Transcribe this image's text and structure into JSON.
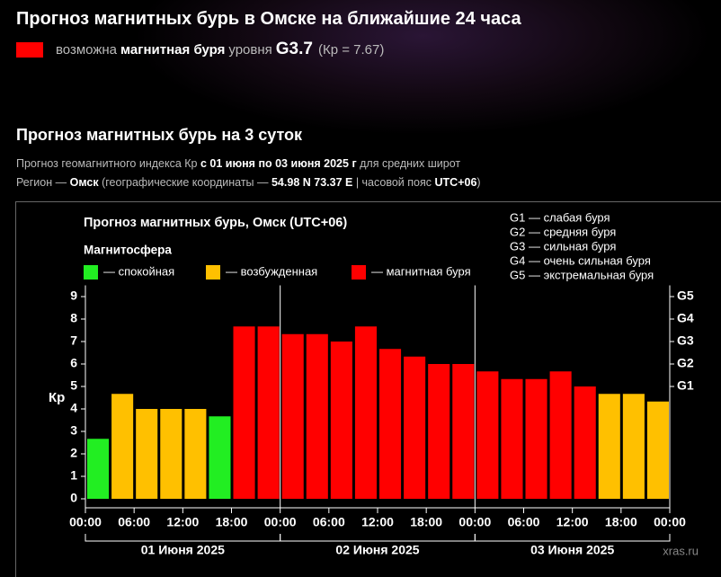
{
  "header": {
    "title": "Прогноз магнитных бурь в Омске на ближайшие 24 часа",
    "color": "#ff0000",
    "prefix": "возможна",
    "storm": "магнитная буря",
    "level_word": "уровня",
    "level": "G3.7",
    "kp": "(Кр = 7.67)"
  },
  "forecast": {
    "title": "Прогноз магнитных бурь на 3 суток",
    "line1": [
      "Прогноз геомагнитного индекса Кр",
      "с 01 июня по 03 июня 2025 г",
      "для средних широт"
    ],
    "line2": [
      "Регион —",
      "Омск",
      "(географические координаты —",
      "54.98 N 73.37 E",
      "| часовой пояс",
      "UTC+06",
      ")"
    ]
  },
  "chart_data": {
    "type": "bar",
    "title": "Прогноз магнитных бурь, Омск (UTC+06)",
    "legend_title": "Магнитосфера",
    "legend": [
      {
        "name": "— спокойная",
        "color": "#22ee22"
      },
      {
        "name": "— возбужденная",
        "color": "#ffc000"
      },
      {
        "name": "— магнитная буря",
        "color": "#ff0000"
      }
    ],
    "g_scale": [
      "G1 — слабая буря",
      "G2 — средняя буря",
      "G3 — сильная буря",
      "G4 — очень сильная буря",
      "G5 — экстремальная буря"
    ],
    "y_label": "Кр",
    "x": [
      0,
      3,
      6,
      9,
      12,
      15,
      18,
      21,
      24,
      27,
      30,
      33,
      36,
      39,
      42,
      45,
      48,
      51,
      54,
      57,
      60,
      63,
      66,
      69
    ],
    "values": [
      2.67,
      4.67,
      4.0,
      4.0,
      4.0,
      3.67,
      7.67,
      7.67,
      7.33,
      7.33,
      7.0,
      7.67,
      6.67,
      6.33,
      6.0,
      6.0,
      5.67,
      5.33,
      5.33,
      5.67,
      5.0,
      4.67,
      4.67,
      4.33
    ],
    "colors": [
      "#22ee22",
      "#ffc000",
      "#ffc000",
      "#ffc000",
      "#ffc000",
      "#22ee22",
      "#ff0000",
      "#ff0000",
      "#ff0000",
      "#ff0000",
      "#ff0000",
      "#ff0000",
      "#ff0000",
      "#ff0000",
      "#ff0000",
      "#ff0000",
      "#ff0000",
      "#ff0000",
      "#ff0000",
      "#ff0000",
      "#ff0000",
      "#ffc000",
      "#ffc000",
      "#ffc000"
    ],
    "xlim": [
      0,
      72
    ],
    "xticks": [
      {
        "value": 0,
        "label": "00:00"
      },
      {
        "value": 6,
        "label": "06:00"
      },
      {
        "value": 12,
        "label": "12:00"
      },
      {
        "value": 18,
        "label": "18:00"
      },
      {
        "value": 24,
        "label": "00:00"
      },
      {
        "value": 30,
        "label": "06:00"
      },
      {
        "value": 36,
        "label": "12:00"
      },
      {
        "value": 42,
        "label": "18:00"
      },
      {
        "value": 48,
        "label": "00:00"
      },
      {
        "value": 54,
        "label": "06:00"
      },
      {
        "value": 60,
        "label": "12:00"
      },
      {
        "value": 66,
        "label": "18:00"
      },
      {
        "value": 72,
        "label": "00:00"
      }
    ],
    "days": [
      "01 Июня 2025",
      "02 Июня 2025",
      "03 Июня 2025"
    ],
    "ylim": [
      -0.4,
      9.5
    ],
    "yticks": [
      0,
      1,
      2,
      3,
      4,
      5,
      6,
      7,
      8,
      9
    ],
    "y2ticks": [
      {
        "value": 5,
        "label": "G1"
      },
      {
        "value": 6,
        "label": "G2"
      },
      {
        "value": 7,
        "label": "G3"
      },
      {
        "value": 8,
        "label": "G4"
      },
      {
        "value": 9,
        "label": "G5"
      }
    ],
    "watermark": "xras.ru"
  }
}
